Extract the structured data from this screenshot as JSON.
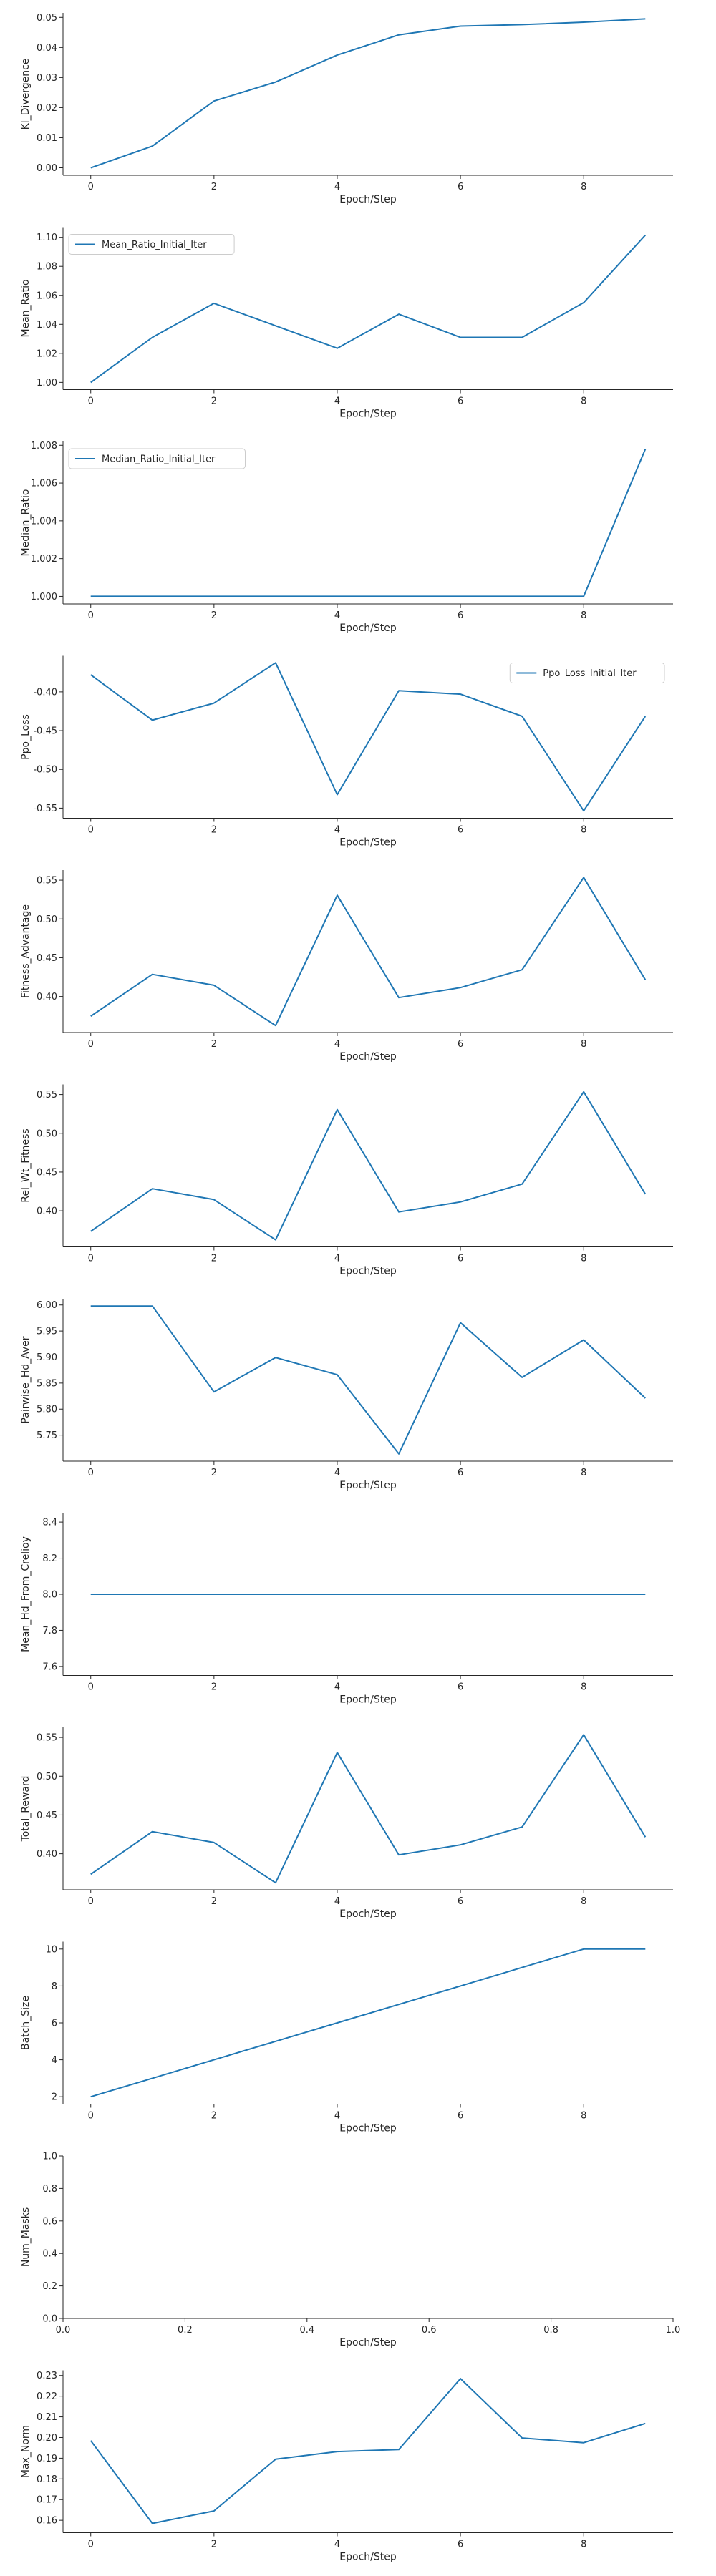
{
  "chart_data": [
    {
      "type": "line",
      "xlabel": "Epoch/Step",
      "ylabel": "Kl_Divergence",
      "x": [
        0,
        1,
        2,
        3,
        4,
        5,
        6,
        7,
        8,
        9
      ],
      "series": [
        {
          "values": [
            0.0,
            0.0072,
            0.0222,
            0.0285,
            0.0375,
            0.0442,
            0.0471,
            0.0476,
            0.0484,
            0.0495
          ]
        }
      ],
      "xticks": [
        "0",
        "2",
        "4",
        "6",
        "8"
      ],
      "yticks": [
        "0.00",
        "0.01",
        "0.02",
        "0.03",
        "0.04",
        "0.05"
      ],
      "xlim": [
        -0.45,
        9.45
      ],
      "ylim": [
        -0.0025,
        0.0515
      ],
      "legend": null
    },
    {
      "type": "line",
      "xlabel": "Epoch/Step",
      "ylabel": "Mean_Ratio",
      "x": [
        0,
        1,
        2,
        3,
        4,
        5,
        6,
        7,
        8,
        9
      ],
      "series": [
        {
          "name": "Mean_Ratio_Initial_Iter",
          "values": [
            1.0,
            1.031,
            1.0545,
            1.039,
            1.0235,
            1.047,
            1.031,
            1.031,
            1.055,
            1.1015
          ]
        }
      ],
      "xticks": [
        "0",
        "2",
        "4",
        "6",
        "8"
      ],
      "yticks": [
        "1.00",
        "1.02",
        "1.04",
        "1.06",
        "1.08",
        "1.10"
      ],
      "xlim": [
        -0.45,
        9.45
      ],
      "ylim": [
        0.995,
        1.107
      ],
      "legend": "upper-left"
    },
    {
      "type": "line",
      "xlabel": "Epoch/Step",
      "ylabel": "Median_Ratio",
      "x": [
        0,
        1,
        2,
        3,
        4,
        5,
        6,
        7,
        8,
        9
      ],
      "series": [
        {
          "name": "Median_Ratio_Initial_Iter",
          "values": [
            1.0,
            1.0,
            1.0,
            1.0,
            1.0,
            1.0,
            1.0,
            1.0,
            1.0,
            1.0078
          ]
        }
      ],
      "xticks": [
        "0",
        "2",
        "4",
        "6",
        "8"
      ],
      "yticks": [
        "1.000",
        "1.002",
        "1.004",
        "1.006",
        "1.008"
      ],
      "xlim": [
        -0.45,
        9.45
      ],
      "ylim": [
        0.9996,
        1.0082
      ],
      "legend": "upper-left"
    },
    {
      "type": "line",
      "xlabel": "Epoch/Step",
      "ylabel": "Ppo_Loss",
      "x": [
        0,
        1,
        2,
        3,
        4,
        5,
        6,
        7,
        8,
        9
      ],
      "series": [
        {
          "name": "Ppo_Loss_Initial_Iter",
          "values": [
            -0.378,
            -0.4365,
            -0.4145,
            -0.3625,
            -0.5325,
            -0.3985,
            -0.403,
            -0.4315,
            -0.5535,
            -0.4315
          ]
        }
      ],
      "xticks": [
        "0",
        "2",
        "4",
        "6",
        "8"
      ],
      "yticks": [
        "-0.40",
        "-0.45",
        "-0.50",
        "-0.55"
      ],
      "xlim": [
        -0.45,
        9.45
      ],
      "ylim": [
        -0.563,
        -0.3535
      ],
      "legend": "upper-right"
    },
    {
      "type": "line",
      "xlabel": "Epoch/Step",
      "ylabel": "Fitness_Advantage",
      "x": [
        0,
        1,
        2,
        3,
        4,
        5,
        6,
        7,
        8,
        9
      ],
      "series": [
        {
          "values": [
            0.3745,
            0.4285,
            0.4145,
            0.3625,
            0.5305,
            0.3985,
            0.4115,
            0.4345,
            0.5535,
            0.4215
          ]
        }
      ],
      "xticks": [
        "0",
        "2",
        "4",
        "6",
        "8"
      ],
      "yticks": [
        "0.40",
        "0.45",
        "0.50",
        "0.55"
      ],
      "xlim": [
        -0.45,
        9.45
      ],
      "ylim": [
        0.3535,
        0.563
      ],
      "legend": null
    },
    {
      "type": "line",
      "xlabel": "Epoch/Step",
      "ylabel": "Rel_Wt_Fitness",
      "x": [
        0,
        1,
        2,
        3,
        4,
        5,
        6,
        7,
        8,
        9
      ],
      "series": [
        {
          "values": [
            0.3735,
            0.4285,
            0.4145,
            0.3625,
            0.5305,
            0.3985,
            0.4115,
            0.4345,
            0.5535,
            0.4215
          ]
        }
      ],
      "xticks": [
        "0",
        "2",
        "4",
        "6",
        "8"
      ],
      "yticks": [
        "0.40",
        "0.45",
        "0.50",
        "0.55"
      ],
      "xlim": [
        -0.45,
        9.45
      ],
      "ylim": [
        0.3535,
        0.563
      ],
      "legend": null
    },
    {
      "type": "line",
      "xlabel": "Epoch/Step",
      "ylabel": "Pairwise_Hd_Aver",
      "x": [
        0,
        1,
        2,
        3,
        4,
        5,
        6,
        7,
        8,
        9
      ],
      "series": [
        {
          "values": [
            5.998,
            5.998,
            5.833,
            5.899,
            5.866,
            5.714,
            5.966,
            5.861,
            5.933,
            5.821
          ]
        }
      ],
      "xticks": [
        "0",
        "2",
        "4",
        "6",
        "8"
      ],
      "yticks": [
        "5.75",
        "5.80",
        "5.85",
        "5.90",
        "5.95",
        "6.00"
      ],
      "xlim": [
        -0.45,
        9.45
      ],
      "ylim": [
        5.7,
        6.012
      ],
      "legend": null
    },
    {
      "type": "line",
      "xlabel": "Epoch/Step",
      "ylabel": "Mean_Hd_From_Crelioy",
      "x": [
        0,
        1,
        2,
        3,
        4,
        5,
        6,
        7,
        8,
        9
      ],
      "series": [
        {
          "values": [
            8.0,
            8.0,
            8.0,
            8.0,
            8.0,
            8.0,
            8.0,
            8.0,
            8.0,
            8.0
          ]
        }
      ],
      "xticks": [
        "0",
        "2",
        "4",
        "6",
        "8"
      ],
      "yticks": [
        "7.6",
        "7.8",
        "8.0",
        "8.2",
        "8.4"
      ],
      "xlim": [
        -0.45,
        9.45
      ],
      "ylim": [
        7.55,
        8.45
      ],
      "legend": null
    },
    {
      "type": "line",
      "xlabel": "Epoch/Step",
      "ylabel": "Total_Reward",
      "x": [
        0,
        1,
        2,
        3,
        4,
        5,
        6,
        7,
        8,
        9
      ],
      "series": [
        {
          "values": [
            0.3735,
            0.4285,
            0.4145,
            0.3625,
            0.5305,
            0.3985,
            0.4115,
            0.4345,
            0.5535,
            0.4215
          ]
        }
      ],
      "xticks": [
        "0",
        "2",
        "4",
        "6",
        "8"
      ],
      "yticks": [
        "0.40",
        "0.45",
        "0.50",
        "0.55"
      ],
      "xlim": [
        -0.45,
        9.45
      ],
      "ylim": [
        0.3535,
        0.563
      ],
      "legend": null
    },
    {
      "type": "line",
      "xlabel": "Epoch/Step",
      "ylabel": "Batch_Size",
      "x": [
        0,
        1,
        2,
        3,
        4,
        5,
        6,
        7,
        8,
        9
      ],
      "series": [
        {
          "values": [
            2,
            3,
            4,
            5,
            6,
            7,
            8,
            9,
            10,
            10
          ]
        }
      ],
      "xticks": [
        "0",
        "2",
        "4",
        "6",
        "8"
      ],
      "yticks": [
        "2",
        "4",
        "6",
        "8",
        "10"
      ],
      "xlim": [
        -0.45,
        9.45
      ],
      "ylim": [
        1.6,
        10.4
      ],
      "legend": null
    },
    {
      "type": "line",
      "xlabel": "Epoch/Step",
      "ylabel": "Num_Masks",
      "x": [],
      "series": [],
      "xticks": [
        "0.0",
        "0.2",
        "0.4",
        "0.6",
        "0.8",
        "1.0"
      ],
      "yticks": [
        "0.0",
        "0.2",
        "0.4",
        "0.6",
        "0.8",
        "1.0"
      ],
      "xlim": [
        0,
        1
      ],
      "ylim": [
        0,
        1
      ],
      "legend": null
    },
    {
      "type": "line",
      "xlabel": "Epoch/Step",
      "ylabel": "Max_Norm",
      "x": [
        0,
        1,
        2,
        3,
        4,
        5,
        6,
        7,
        8,
        9
      ],
      "series": [
        {
          "values": [
            0.1985,
            0.1585,
            0.1645,
            0.1895,
            0.1932,
            0.1942,
            0.2285,
            0.1998,
            0.1975,
            0.2068
          ]
        }
      ],
      "xticks": [
        "0",
        "2",
        "4",
        "6",
        "8"
      ],
      "yticks": [
        "0.16",
        "0.17",
        "0.18",
        "0.19",
        "0.20",
        "0.21",
        "0.22",
        "0.23"
      ],
      "xlim": [
        -0.45,
        9.45
      ],
      "ylim": [
        0.154,
        0.2325
      ],
      "legend": null
    }
  ]
}
